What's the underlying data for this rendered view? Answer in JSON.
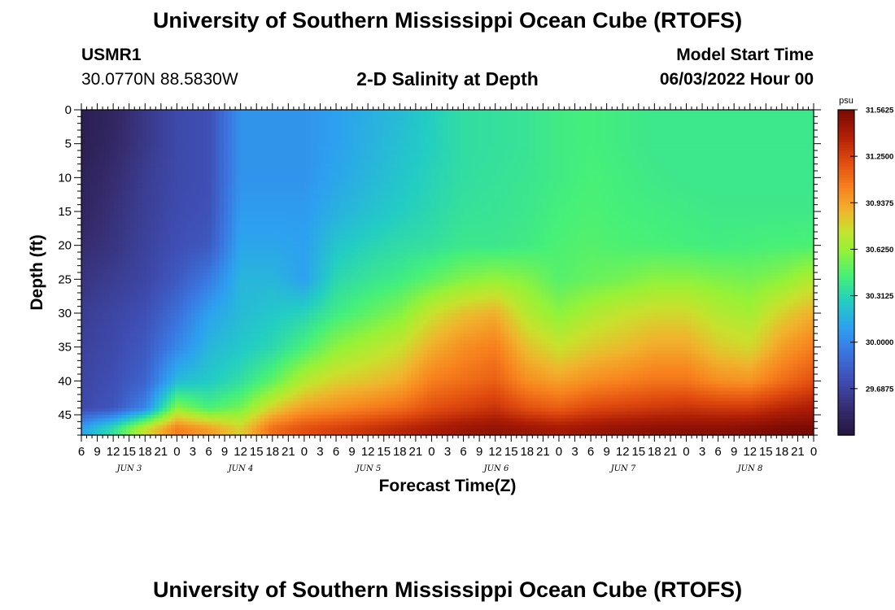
{
  "page": {
    "title": "University of Southern Mississippi Ocean Cube (RTOFS)",
    "station_id": "USMR1",
    "coordinates": "30.0770N  88.5830W",
    "plot_title": "2-D Salinity at Depth",
    "model_start_label": "Model Start Time",
    "model_start_value": "06/03/2022 Hour 00",
    "repeated_title": "University of Southern Mississippi Ocean Cube (RTOFS)"
  },
  "chart_data": {
    "type": "heatmap",
    "title": "2-D Salinity at Depth",
    "xlabel": "Forecast Time(Z)",
    "ylabel": "Depth (ft)",
    "x_tick_labels": [
      "6",
      "9",
      "12",
      "15",
      "18",
      "21",
      "0",
      "3",
      "6",
      "9",
      "12",
      "15",
      "18",
      "21",
      "0",
      "3",
      "6",
      "9",
      "12",
      "15",
      "18",
      "21",
      "0",
      "3",
      "6",
      "9",
      "12",
      "15",
      "18",
      "21",
      "0",
      "3",
      "6",
      "9",
      "12",
      "15",
      "18",
      "21",
      "0",
      "3",
      "6",
      "9",
      "12",
      "15",
      "18",
      "21",
      "0"
    ],
    "day_labels": [
      "JUN 3",
      "JUN 4",
      "JUN 5",
      "JUN 6",
      "JUN 7",
      "JUN 8"
    ],
    "y_ticks": [
      0,
      5,
      10,
      15,
      20,
      25,
      30,
      35,
      40,
      45
    ],
    "ylim": [
      0,
      48
    ],
    "xlim_hours": [
      6,
      144
    ],
    "colorbar": {
      "unit": "psu",
      "range": [
        29.375,
        31.5625
      ],
      "ticks": [
        31.5625,
        31.25,
        30.9375,
        30.625,
        30.3125,
        30.0,
        29.6875
      ],
      "tick_labels": [
        "31.5625",
        "31.2500",
        "30.9375",
        "30.6250",
        "30.3125",
        "30.0000",
        "29.6875"
      ]
    },
    "salinity_psu": {
      "hours": [
        6,
        12,
        18,
        24,
        30,
        36,
        42,
        48,
        54,
        60,
        66,
        72,
        78,
        84,
        90,
        96,
        102,
        108,
        114,
        120,
        126,
        132,
        138,
        144
      ],
      "depths_ft": [
        0,
        5,
        10,
        15,
        20,
        25,
        30,
        35,
        40,
        44,
        47
      ],
      "values": [
        [
          29.45,
          29.5,
          29.62,
          29.72,
          29.75,
          30.05,
          30.05,
          30.05,
          30.1,
          30.15,
          30.2,
          30.28,
          30.35,
          30.36,
          30.38,
          30.42,
          30.44,
          30.42,
          30.4,
          30.4,
          30.4,
          30.4,
          30.4,
          30.4
        ],
        [
          29.45,
          29.52,
          29.62,
          29.72,
          29.75,
          30.05,
          30.05,
          30.05,
          30.1,
          30.16,
          30.22,
          30.28,
          30.35,
          30.36,
          30.38,
          30.42,
          30.44,
          30.42,
          30.4,
          30.4,
          30.4,
          30.4,
          30.4,
          30.4
        ],
        [
          29.48,
          29.55,
          29.65,
          29.72,
          29.75,
          30.05,
          30.05,
          30.05,
          30.12,
          30.18,
          30.24,
          30.3,
          30.35,
          30.37,
          30.39,
          30.42,
          30.45,
          30.43,
          30.41,
          30.4,
          30.4,
          30.4,
          30.4,
          30.4
        ],
        [
          29.5,
          29.58,
          29.66,
          29.73,
          29.76,
          30.08,
          30.08,
          30.08,
          30.16,
          30.22,
          30.27,
          30.32,
          30.37,
          30.38,
          30.4,
          30.44,
          30.46,
          30.44,
          30.43,
          30.42,
          30.41,
          30.41,
          30.41,
          30.41
        ],
        [
          29.55,
          29.6,
          29.68,
          29.75,
          29.8,
          30.12,
          30.12,
          30.1,
          30.24,
          30.3,
          30.34,
          30.36,
          30.4,
          30.4,
          30.42,
          30.46,
          30.48,
          30.46,
          30.45,
          30.44,
          30.43,
          30.44,
          30.45,
          30.46
        ],
        [
          29.6,
          29.65,
          29.7,
          29.8,
          29.95,
          30.18,
          30.18,
          30.1,
          30.32,
          30.38,
          30.42,
          30.5,
          30.58,
          30.62,
          30.58,
          30.48,
          30.52,
          30.55,
          30.6,
          30.6,
          30.57,
          30.55,
          30.6,
          30.7
        ],
        [
          29.65,
          29.7,
          29.75,
          29.9,
          30.1,
          30.2,
          30.25,
          30.3,
          30.42,
          30.5,
          30.58,
          30.75,
          30.85,
          30.9,
          30.7,
          30.6,
          30.68,
          30.74,
          30.78,
          30.78,
          30.7,
          30.66,
          30.8,
          30.9
        ],
        [
          29.68,
          29.72,
          29.8,
          30.0,
          30.18,
          30.25,
          30.32,
          30.45,
          30.6,
          30.68,
          30.75,
          30.9,
          31.0,
          31.05,
          30.85,
          30.75,
          30.82,
          30.86,
          30.92,
          30.92,
          30.82,
          30.78,
          30.95,
          31.05
        ],
        [
          29.7,
          29.75,
          29.85,
          30.2,
          30.26,
          30.35,
          30.5,
          30.7,
          30.8,
          30.84,
          30.9,
          31.05,
          31.1,
          31.15,
          31.0,
          30.94,
          31.0,
          31.04,
          31.08,
          31.08,
          31.0,
          30.98,
          31.1,
          31.2
        ],
        [
          29.72,
          29.78,
          30.0,
          30.6,
          30.45,
          30.55,
          30.8,
          30.95,
          31.0,
          31.05,
          31.1,
          31.2,
          31.25,
          31.3,
          31.2,
          31.15,
          31.22,
          31.25,
          31.28,
          31.3,
          31.28,
          31.28,
          31.35,
          31.4
        ],
        [
          30.1,
          30.35,
          30.75,
          31.05,
          30.95,
          30.8,
          31.1,
          31.2,
          31.25,
          31.3,
          31.35,
          31.4,
          31.45,
          31.48,
          31.45,
          31.42,
          31.45,
          31.48,
          31.5,
          31.5,
          31.5,
          31.52,
          31.55,
          31.56
        ]
      ]
    }
  }
}
